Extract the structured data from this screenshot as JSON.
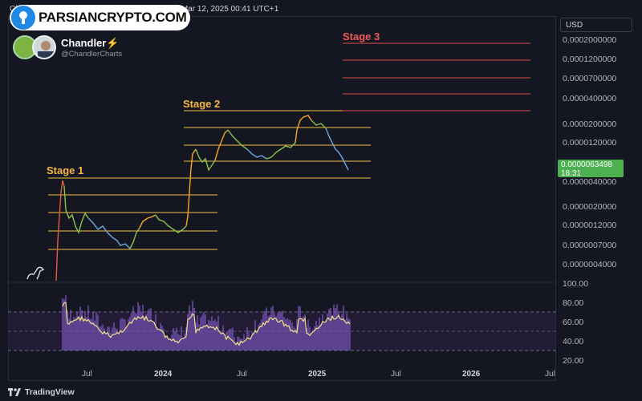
{
  "header": {
    "publish_info": "ChandlerCharts published on TradingView.com, Mar 12, 2025 00:41 UTC+1",
    "watermark": "PARSIANCRYPTO.COM"
  },
  "author": {
    "name": "Chandler⚡",
    "handle": "@ChandlerCharts"
  },
  "currency": "USD",
  "current_price": {
    "value": "0.0000063498",
    "countdown": "18:31"
  },
  "price_axis_labels": [
    "0.0002000000",
    "0.0001200000",
    "0.0000700000",
    "0.0000400000",
    "0.0000200000",
    "0.0000120000",
    "0.0000040000",
    "0.0000020000",
    "0.0000012000",
    "0.0000007000",
    "0.0000004000"
  ],
  "rsi_axis_labels": [
    "100.00",
    "80.00",
    "60.00",
    "40.00",
    "20.00"
  ],
  "time_labels": [
    "Jul",
    "2024",
    "Jul",
    "2025",
    "Jul",
    "2026",
    "Jul"
  ],
  "stages": [
    "Stage 1",
    "Stage 2",
    "Stage 3"
  ],
  "colors": {
    "background": "#131722",
    "stage1_line": "#f0c040",
    "stage2_line": "#f0c040",
    "stage3_line": "#e04848",
    "stage3_label": "#f05a5a",
    "stage_label": "#f5b841",
    "rsi_line": "#f0e08a",
    "rsi_hist": "#7e57c2",
    "price_tag": "#4caf50"
  },
  "footer": {
    "brand": "TradingView"
  }
}
